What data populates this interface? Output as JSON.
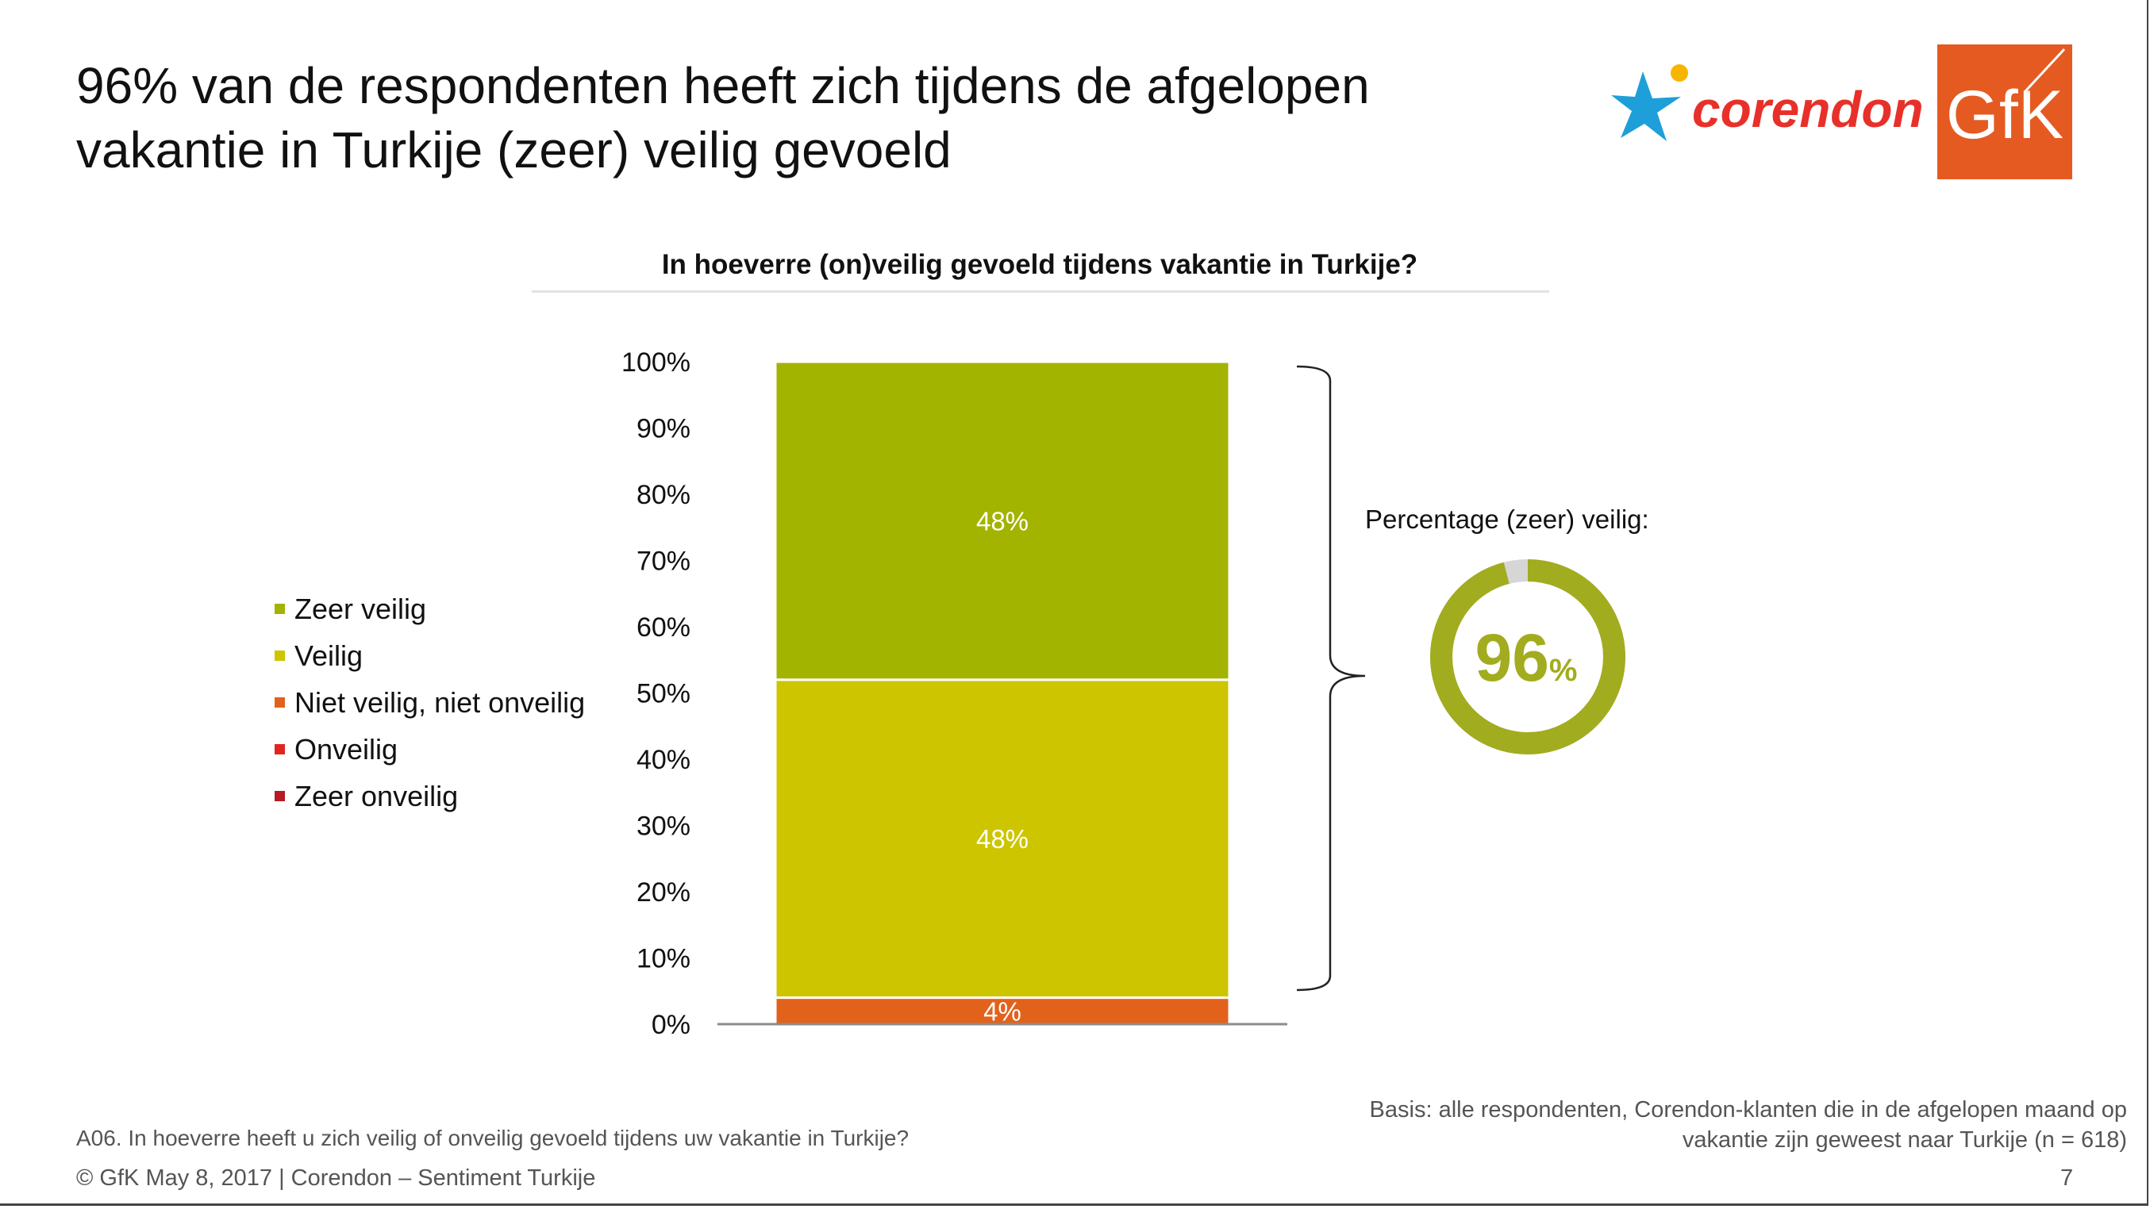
{
  "slide": {
    "title": "96% van de respondenten heeft zich tijdens de afgelopen vakantie in Turkije (zeer) veilig gevoeld",
    "logos": {
      "corendon": "corendon",
      "gfk": "GfK"
    },
    "question_note": "A06. In hoeverre heeft u zich veilig of onveilig gevoeld tijdens uw vakantie in Turkije?",
    "footer": "© GfK May 8, 2017 | Corendon – Sentiment Turkije",
    "basis": "Basis: alle respondenten, Corendon-klanten die in de afgelopen maand op vakantie zijn geweest naar Turkije (n = 618)",
    "page_number": "7"
  },
  "chart_data": {
    "type": "bar",
    "stacked": true,
    "title": "In hoeverre (on)veilig gevoeld tijdens vakantie in Turkije?",
    "categories": [
      ""
    ],
    "ylim": [
      0,
      100
    ],
    "yticks": [
      "0%",
      "10%",
      "20%",
      "30%",
      "40%",
      "50%",
      "60%",
      "70%",
      "80%",
      "90%",
      "100%"
    ],
    "series": [
      {
        "name": "Zeer veilig",
        "values": [
          48
        ],
        "label": "48%",
        "color": "#a2b300"
      },
      {
        "name": "Veilig",
        "values": [
          48
        ],
        "label": "48%",
        "color": "#cdc500"
      },
      {
        "name": "Niet veilig, niet onveilig",
        "values": [
          4
        ],
        "label": "4%",
        "color": "#e2621c"
      },
      {
        "name": "Onveilig",
        "values": [
          0
        ],
        "label": "",
        "color": "#e2251f"
      },
      {
        "name": "Zeer onveilig",
        "values": [
          0
        ],
        "label": "",
        "color": "#b51b24"
      }
    ],
    "legend_position": "left"
  },
  "ring": {
    "label": "Percentage (zeer) veilig:",
    "value": 96,
    "value_text": "96",
    "unit": "%",
    "color": "#a2ac1f",
    "rest_color": "#d6d6d6"
  }
}
